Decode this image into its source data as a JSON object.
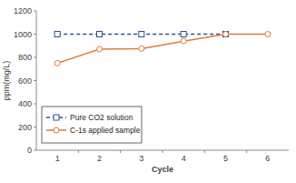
{
  "chart_data": {
    "type": "line",
    "x_label": "Cycle",
    "y_label": "ppm(mg/L)",
    "categories": [
      "1",
      "2",
      "3",
      "4",
      "5",
      "6"
    ],
    "series": [
      {
        "name": "Pure CO2 solution",
        "color": "#2f4f8f",
        "marker": "square",
        "line_style": "dashed",
        "values": [
          1000,
          1000,
          1000,
          1000,
          1000,
          null
        ]
      },
      {
        "name": "C-1s applied sample",
        "color": "#e07b39",
        "marker": "circle",
        "line_style": "solid",
        "values": [
          750,
          870,
          875,
          940,
          1000,
          1000
        ]
      }
    ],
    "ylim": [
      0,
      1200
    ],
    "yticks": [
      0,
      200,
      400,
      600,
      800,
      1000,
      1200
    ],
    "grid": false,
    "legend": "lower left"
  }
}
